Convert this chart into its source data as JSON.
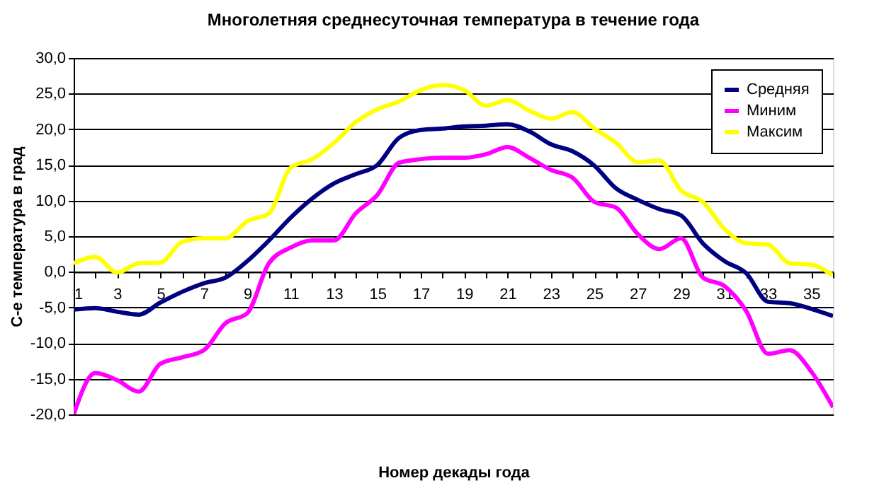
{
  "chart_data": {
    "type": "line",
    "title": "Многолетняя среднесуточная температура в течение года",
    "xlabel": "Номер декады года",
    "ylabel": "С-е температура в град",
    "x": [
      1,
      2,
      3,
      4,
      5,
      6,
      7,
      8,
      9,
      10,
      11,
      12,
      13,
      14,
      15,
      16,
      17,
      18,
      19,
      20,
      21,
      22,
      23,
      24,
      25,
      26,
      27,
      28,
      29,
      30,
      31,
      32,
      33,
      34,
      35,
      36
    ],
    "series": [
      {
        "name": "Средняя",
        "color": "#000080",
        "values": [
          -5.3,
          -5.1,
          -5.6,
          -6.0,
          -4.3,
          -2.8,
          -1.6,
          -0.8,
          1.5,
          4.4,
          7.6,
          10.3,
          12.4,
          13.7,
          15.0,
          18.8,
          19.9,
          20.1,
          20.4,
          20.5,
          20.7,
          19.7,
          17.9,
          16.9,
          14.9,
          11.7,
          10.1,
          8.8,
          7.9,
          4.0,
          1.5,
          -0.2,
          -4.2,
          -4.4,
          -5.2,
          -6.2
        ]
      },
      {
        "name": "Миним",
        "color": "#ff00ff",
        "values": [
          -20.0,
          -14.2,
          -15.2,
          -16.8,
          -12.9,
          -12.0,
          -11.0,
          -7.2,
          -5.8,
          1.2,
          3.4,
          4.4,
          4.4,
          8.2,
          10.8,
          15.3,
          15.8,
          16.0,
          16.0,
          16.5,
          17.5,
          16.0,
          14.3,
          13.2,
          9.8,
          9.0,
          5.3,
          3.2,
          4.7,
          -0.8,
          -2.0,
          -5.5,
          -11.5,
          -11.0,
          -14.0,
          -19.0
        ]
      },
      {
        "name": "Максим",
        "color": "#ffff00",
        "values": [
          1.2,
          2.1,
          -0.1,
          1.2,
          1.3,
          4.2,
          4.7,
          4.7,
          7.1,
          8.2,
          14.6,
          15.8,
          18.1,
          21.0,
          22.8,
          23.9,
          25.5,
          26.2,
          25.5,
          23.3,
          24.1,
          22.6,
          21.5,
          22.4,
          20.1,
          18.1,
          15.4,
          15.6,
          11.4,
          9.8,
          6.0,
          4.0,
          3.8,
          1.2,
          1.0,
          -0.5
        ]
      }
    ],
    "xlim": [
      1,
      36
    ],
    "xticks": [
      1,
      {
        "value": 2,
        "label": null
      },
      3,
      {
        "value": 4,
        "label": null
      },
      5,
      {
        "value": 6,
        "label": null
      },
      7,
      {
        "value": 8,
        "label": null
      },
      9,
      {
        "value": 10,
        "label": null
      },
      11,
      {
        "value": 12,
        "label": null
      },
      13,
      {
        "value": 14,
        "label": null
      },
      15,
      {
        "value": 16,
        "label": null
      },
      17,
      {
        "value": 18,
        "label": null
      },
      19,
      {
        "value": 20,
        "label": null
      },
      21,
      {
        "value": 22,
        "label": null
      },
      23,
      {
        "value": 24,
        "label": null
      },
      25,
      {
        "value": 26,
        "label": null
      },
      27,
      {
        "value": 28,
        "label": null
      },
      29,
      {
        "value": 30,
        "label": null
      },
      31,
      {
        "value": 32,
        "label": null
      },
      33,
      {
        "value": 34,
        "label": null
      },
      35,
      {
        "value": 36,
        "label": null
      }
    ],
    "ylim": [
      -20,
      30
    ],
    "yticks": [
      {
        "value": -20,
        "label": "-20,0"
      },
      {
        "value": -15,
        "label": "-15,0"
      },
      {
        "value": -10,
        "label": "-10,0"
      },
      {
        "value": -5,
        "label": "-5,0"
      },
      {
        "value": 0,
        "label": "0,0"
      },
      {
        "value": 5,
        "label": "5,0"
      },
      {
        "value": 10,
        "label": "10,0"
      },
      {
        "value": 15,
        "label": "15,0"
      },
      {
        "value": 20,
        "label": "20,0"
      },
      {
        "value": 25,
        "label": "25,0"
      },
      {
        "value": 30,
        "label": "30,0"
      }
    ],
    "grid": "y",
    "legend": "top right",
    "marker": "none",
    "line_style": "solid"
  }
}
